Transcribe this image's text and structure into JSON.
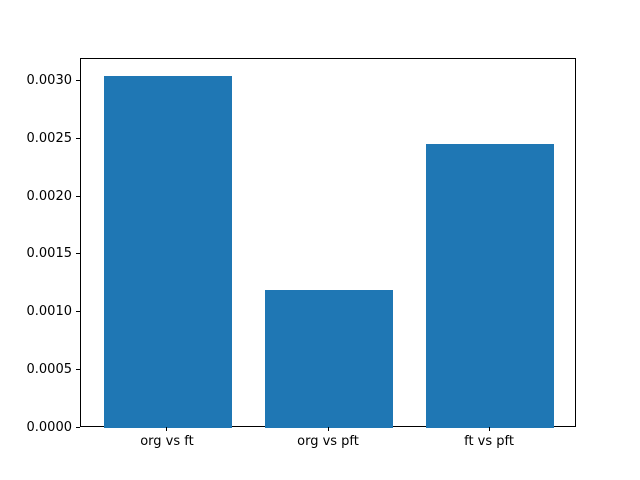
{
  "chart_data": {
    "type": "bar",
    "categories": [
      "org vs ft",
      "org vs pft",
      "ft vs pft"
    ],
    "values": [
      0.00305,
      0.0012,
      0.00246
    ],
    "title": "",
    "xlabel": "",
    "ylabel": "",
    "ylim": [
      0,
      0.0032
    ],
    "yticks": [
      0.0,
      0.0005,
      0.001,
      0.0015,
      0.002,
      0.0025,
      0.003
    ],
    "ytick_labels": [
      "0.0000",
      "0.0005",
      "0.0010",
      "0.0015",
      "0.0020",
      "0.0025",
      "0.0030"
    ],
    "bar_color": "#1f77b4",
    "background_color": "#ffffff",
    "spine_color": "#000000",
    "text_color": "#000000",
    "grid": false,
    "legend": false
  }
}
